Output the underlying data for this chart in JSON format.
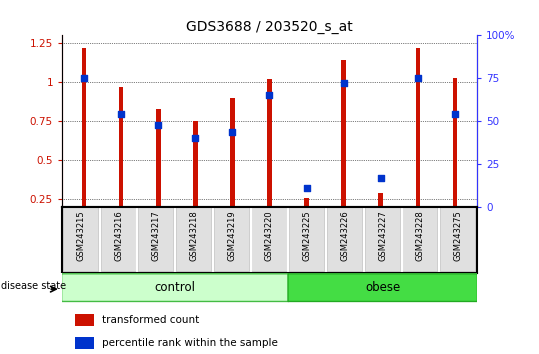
{
  "title": "GDS3688 / 203520_s_at",
  "samples": [
    "GSM243215",
    "GSM243216",
    "GSM243217",
    "GSM243218",
    "GSM243219",
    "GSM243220",
    "GSM243225",
    "GSM243226",
    "GSM243227",
    "GSM243228",
    "GSM243275"
  ],
  "red_values": [
    1.22,
    0.97,
    0.83,
    0.75,
    0.9,
    1.02,
    0.26,
    1.14,
    0.29,
    1.22,
    1.03
  ],
  "blue_pct": [
    75,
    54,
    48,
    40,
    44,
    65,
    11,
    72,
    17,
    75,
    54
  ],
  "red_color": "#cc1100",
  "blue_color": "#0033cc",
  "ylim_left": [
    0.2,
    1.3
  ],
  "ylim_right": [
    0,
    100
  ],
  "yticks_left": [
    0.25,
    0.5,
    0.75,
    1.0,
    1.25
  ],
  "yticks_right": [
    0,
    25,
    50,
    75,
    100
  ],
  "ytick_labels_left": [
    "0.25",
    "0.5",
    "0.75",
    "1",
    "1.25"
  ],
  "ytick_labels_right": [
    "0",
    "25",
    "50",
    "75",
    "100%"
  ],
  "grid_y": [
    0.25,
    0.5,
    0.75,
    1.0,
    1.25
  ],
  "n_control": 6,
  "control_label": "control",
  "obese_label": "obese",
  "control_color": "#ccffcc",
  "obese_color": "#44dd44",
  "disease_state_label": "disease state",
  "legend_red_label": "transformed count",
  "legend_blue_label": "percentile rank within the sample",
  "bar_width": 0.12,
  "left_axis_color": "#cc1100",
  "right_axis_color": "#3333ff",
  "title_fontsize": 10,
  "tick_fontsize": 7.5,
  "sample_fontsize": 6,
  "group_label_fontsize": 8.5,
  "legend_fontsize": 7.5
}
